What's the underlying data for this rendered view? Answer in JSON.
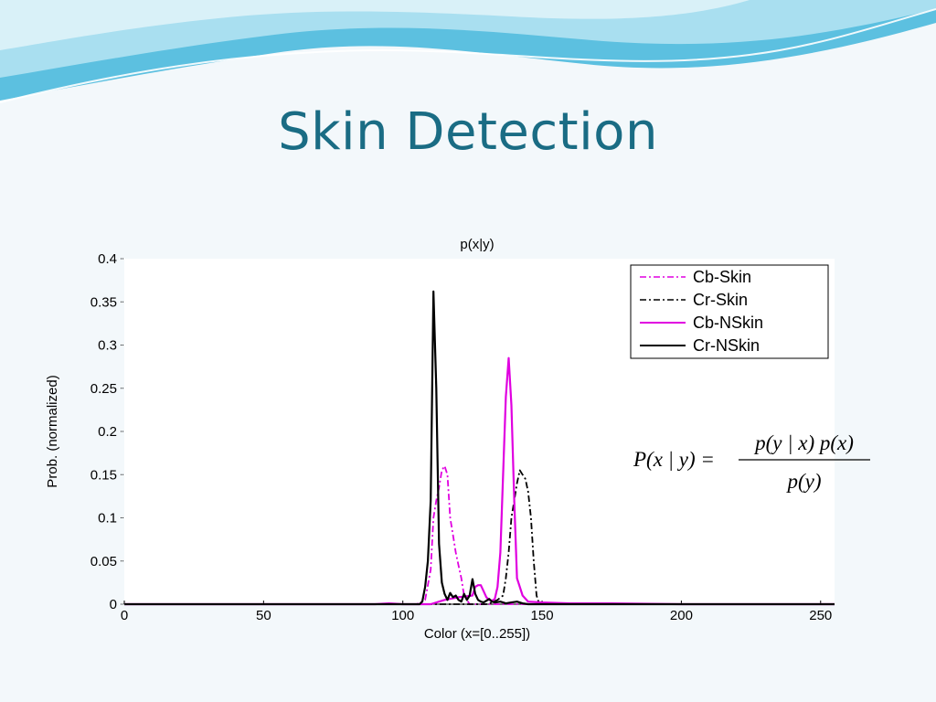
{
  "slide": {
    "title": "Skin Detection",
    "colors": {
      "title": "#1a6c84",
      "wave_dark": "#3fb0d8",
      "wave_light": "#a9dff0",
      "background": "#f3f8fb"
    }
  },
  "formula": {
    "lhs": "P(x | y) =",
    "numerator": "p(y | x) p(x)",
    "denominator": "p(y)"
  },
  "chart_data": {
    "type": "line",
    "title": "p(x|y)",
    "xlabel": "Color  (x=[0..255])",
    "ylabel": "Prob. (normalized)",
    "xlim": [
      0,
      255
    ],
    "ylim": [
      0,
      0.4
    ],
    "xticks": [
      0,
      50,
      100,
      150,
      200,
      250
    ],
    "xtick_labels": [
      "0",
      "50",
      "100",
      "150",
      "200",
      "250"
    ],
    "yticks": [
      0,
      0.05,
      0.1,
      0.15,
      0.2,
      0.25,
      0.3,
      0.35,
      0.4
    ],
    "ytick_labels": [
      "0",
      "0.05",
      "0.1",
      "0.15",
      "0.2",
      "0.25",
      "0.3",
      "0.35",
      "0.4"
    ],
    "grid": false,
    "legend_position": "top-right",
    "series": [
      {
        "name": "Cb-Skin",
        "color": "#e000e0",
        "style": "dashdot",
        "x": [
          0,
          105,
          108,
          110,
          111,
          112,
          113,
          114,
          115,
          116,
          117,
          118,
          119,
          120,
          121,
          122,
          124,
          255
        ],
        "y": [
          0,
          0,
          0.005,
          0.04,
          0.1,
          0.12,
          0.135,
          0.155,
          0.16,
          0.15,
          0.1,
          0.08,
          0.06,
          0.045,
          0.03,
          0.01,
          0,
          0
        ]
      },
      {
        "name": "Cr-Skin",
        "color": "#000000",
        "style": "dashdot",
        "x": [
          0,
          130,
          132,
          134,
          136,
          137,
          138,
          139,
          140,
          141,
          142,
          143,
          144,
          145,
          146,
          147,
          148,
          149,
          255
        ],
        "y": [
          0,
          0,
          0.002,
          0.005,
          0.01,
          0.03,
          0.06,
          0.1,
          0.12,
          0.14,
          0.155,
          0.15,
          0.145,
          0.13,
          0.1,
          0.05,
          0.01,
          0,
          0
        ]
      },
      {
        "name": "Cb-NSkin",
        "color": "#e000e0",
        "style": "solid",
        "x": [
          0,
          90,
          95,
          100,
          110,
          115,
          120,
          125,
          126,
          127,
          128,
          129,
          130,
          131,
          132,
          133,
          134,
          135,
          136,
          137,
          138,
          139,
          140,
          141,
          142,
          143,
          145,
          150,
          160,
          175,
          200,
          255
        ],
        "y": [
          0,
          0,
          0.001,
          0,
          0,
          0.005,
          0.008,
          0.01,
          0.02,
          0.022,
          0.022,
          0.015,
          0.008,
          0.005,
          0.004,
          0.006,
          0.02,
          0.06,
          0.15,
          0.24,
          0.285,
          0.23,
          0.12,
          0.03,
          0.02,
          0.01,
          0.003,
          0.002,
          0.001,
          0.001,
          0,
          0
        ]
      },
      {
        "name": "Cr-NSkin",
        "color": "#000000",
        "style": "solid",
        "x": [
          0,
          106,
          107,
          108,
          109,
          110,
          111,
          112,
          113,
          114,
          115,
          116,
          117,
          118,
          119,
          120,
          121,
          122,
          123,
          124,
          125,
          126,
          127,
          128,
          129,
          130,
          131,
          132,
          133,
          135,
          137,
          139,
          141,
          143,
          145,
          150,
          255
        ],
        "y": [
          0,
          0,
          0.003,
          0.02,
          0.05,
          0.12,
          0.362,
          0.25,
          0.07,
          0.025,
          0.012,
          0.005,
          0.013,
          0.008,
          0.01,
          0.005,
          0.003,
          0.012,
          0.005,
          0.01,
          0.029,
          0.012,
          0.005,
          0.003,
          0.002,
          0.004,
          0.006,
          0.003,
          0.002,
          0.003,
          0.001,
          0.002,
          0.003,
          0.001,
          0,
          0,
          0
        ]
      }
    ]
  }
}
